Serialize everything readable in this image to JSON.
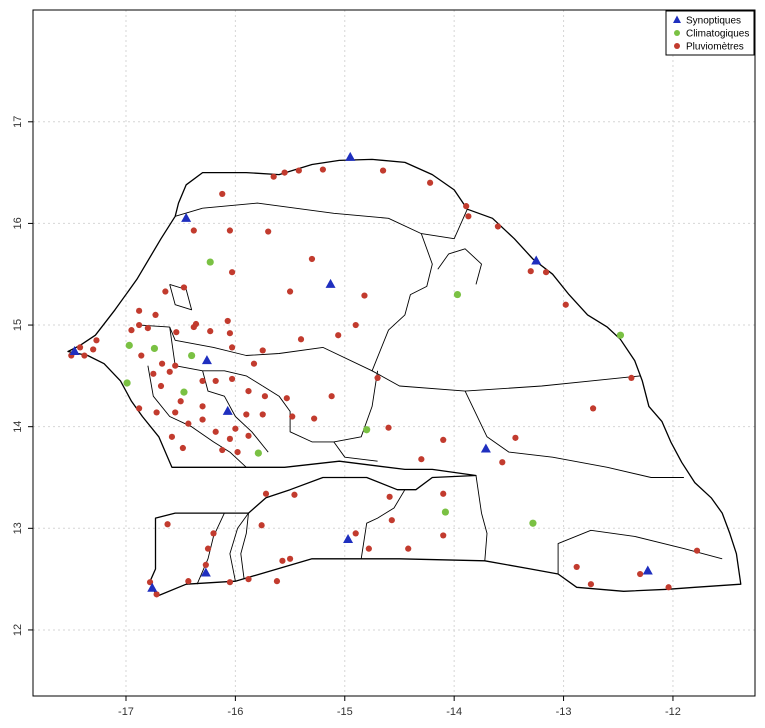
{
  "chart_data": {
    "type": "scatter",
    "title": "",
    "xlabel": "",
    "ylabel": "",
    "xlim": [
      -17.85,
      -11.25
    ],
    "ylim": [
      11.35,
      18.1
    ],
    "x_ticks": [
      -17,
      -16,
      -15,
      -14,
      -13,
      -12
    ],
    "y_ticks": [
      12,
      13,
      14,
      15,
      16,
      17
    ],
    "grid": true,
    "legend_position": "top-right",
    "series": [
      {
        "name": "Synoptiques",
        "marker": "triangle",
        "color": "#1f2fbf",
        "points": [
          [
            -14.95,
            16.65
          ],
          [
            -16.45,
            16.05
          ],
          [
            -13.25,
            15.63
          ],
          [
            -15.13,
            15.4
          ],
          [
            -17.47,
            14.74
          ],
          [
            -16.26,
            14.65
          ],
          [
            -16.07,
            14.15
          ],
          [
            -13.71,
            13.78
          ],
          [
            -14.97,
            12.89
          ],
          [
            -16.27,
            12.56
          ],
          [
            -12.23,
            12.58
          ],
          [
            -16.76,
            12.41
          ]
        ]
      },
      {
        "name": "Climatogiques",
        "marker": "circle",
        "color": "#7ac143",
        "points": [
          [
            -16.23,
            15.62
          ],
          [
            -13.97,
            15.3
          ],
          [
            -12.48,
            14.9
          ],
          [
            -16.97,
            14.8
          ],
          [
            -16.74,
            14.77
          ],
          [
            -16.4,
            14.7
          ],
          [
            -16.99,
            14.43
          ],
          [
            -16.47,
            14.34
          ],
          [
            -14.8,
            13.97
          ],
          [
            -15.79,
            13.74
          ],
          [
            -14.08,
            13.16
          ],
          [
            -13.28,
            13.05
          ]
        ]
      },
      {
        "name": "Pluviomètres",
        "marker": "circle",
        "color": "#c23b2e",
        "points": [
          [
            -15.42,
            16.52
          ],
          [
            -15.2,
            16.53
          ],
          [
            -14.65,
            16.52
          ],
          [
            -15.65,
            16.46
          ],
          [
            -15.55,
            16.5
          ],
          [
            -14.22,
            16.4
          ],
          [
            -16.12,
            16.29
          ],
          [
            -13.89,
            16.17
          ],
          [
            -13.87,
            16.07
          ],
          [
            -16.38,
            15.93
          ],
          [
            -16.05,
            15.93
          ],
          [
            -13.6,
            15.97
          ],
          [
            -15.7,
            15.92
          ],
          [
            -15.3,
            15.65
          ],
          [
            -13.3,
            15.53
          ],
          [
            -13.16,
            15.52
          ],
          [
            -16.03,
            15.52
          ],
          [
            -14.82,
            15.29
          ],
          [
            -15.5,
            15.33
          ],
          [
            -12.98,
            15.2
          ],
          [
            -16.47,
            15.37
          ],
          [
            -16.64,
            15.33
          ],
          [
            -16.88,
            15.14
          ],
          [
            -16.73,
            15.1
          ],
          [
            -16.88,
            15.0
          ],
          [
            -16.36,
            15.01
          ],
          [
            -16.07,
            15.04
          ],
          [
            -14.9,
            15.0
          ],
          [
            -15.06,
            14.9
          ],
          [
            -15.4,
            14.86
          ],
          [
            -16.95,
            14.95
          ],
          [
            -16.8,
            14.97
          ],
          [
            -16.54,
            14.93
          ],
          [
            -16.38,
            14.98
          ],
          [
            -16.23,
            14.94
          ],
          [
            -16.05,
            14.92
          ],
          [
            -17.27,
            14.85
          ],
          [
            -17.42,
            14.78
          ],
          [
            -17.3,
            14.76
          ],
          [
            -17.38,
            14.7
          ],
          [
            -17.5,
            14.7
          ],
          [
            -16.86,
            14.7
          ],
          [
            -16.67,
            14.62
          ],
          [
            -16.55,
            14.6
          ],
          [
            -16.03,
            14.78
          ],
          [
            -15.75,
            14.75
          ],
          [
            -15.83,
            14.62
          ],
          [
            -16.75,
            14.52
          ],
          [
            -16.6,
            14.54
          ],
          [
            -16.3,
            14.45
          ],
          [
            -16.18,
            14.45
          ],
          [
            -16.03,
            14.47
          ],
          [
            -16.68,
            14.4
          ],
          [
            -16.5,
            14.25
          ],
          [
            -16.3,
            14.2
          ],
          [
            -15.88,
            14.35
          ],
          [
            -15.73,
            14.3
          ],
          [
            -16.88,
            14.18
          ],
          [
            -16.72,
            14.14
          ],
          [
            -16.55,
            14.14
          ],
          [
            -16.43,
            14.03
          ],
          [
            -16.3,
            14.07
          ],
          [
            -16.0,
            13.98
          ],
          [
            -15.9,
            14.12
          ],
          [
            -15.75,
            14.12
          ],
          [
            -15.53,
            14.28
          ],
          [
            -15.48,
            14.1
          ],
          [
            -15.28,
            14.08
          ],
          [
            -15.12,
            14.3
          ],
          [
            -14.7,
            14.48
          ],
          [
            -16.58,
            13.9
          ],
          [
            -16.18,
            13.95
          ],
          [
            -16.05,
            13.88
          ],
          [
            -15.88,
            13.91
          ],
          [
            -14.6,
            13.99
          ],
          [
            -16.48,
            13.79
          ],
          [
            -16.12,
            13.77
          ],
          [
            -15.98,
            13.75
          ],
          [
            -14.1,
            13.87
          ],
          [
            -13.44,
            13.89
          ],
          [
            -14.3,
            13.68
          ],
          [
            -13.56,
            13.65
          ],
          [
            -12.73,
            14.18
          ],
          [
            -12.38,
            14.48
          ],
          [
            -14.59,
            13.31
          ],
          [
            -14.1,
            13.34
          ],
          [
            -15.72,
            13.34
          ],
          [
            -15.46,
            13.33
          ],
          [
            -14.57,
            13.08
          ],
          [
            -14.9,
            12.95
          ],
          [
            -14.1,
            12.93
          ],
          [
            -16.62,
            13.04
          ],
          [
            -16.2,
            12.95
          ],
          [
            -16.25,
            12.8
          ],
          [
            -15.76,
            13.03
          ],
          [
            -14.78,
            12.8
          ],
          [
            -14.42,
            12.8
          ],
          [
            -16.27,
            12.64
          ],
          [
            -15.5,
            12.7
          ],
          [
            -15.57,
            12.68
          ],
          [
            -16.43,
            12.48
          ],
          [
            -16.05,
            12.47
          ],
          [
            -15.88,
            12.5
          ],
          [
            -15.62,
            12.48
          ],
          [
            -16.78,
            12.47
          ],
          [
            -16.72,
            12.35
          ],
          [
            -12.88,
            12.62
          ],
          [
            -12.75,
            12.45
          ],
          [
            -12.3,
            12.55
          ],
          [
            -12.04,
            12.42
          ],
          [
            -11.78,
            12.78
          ]
        ]
      }
    ],
    "country_outline": [
      [
        -17.53,
        14.74
      ],
      [
        -17.42,
        14.8
      ],
      [
        -17.28,
        14.9
      ],
      [
        -17.1,
        15.15
      ],
      [
        -16.9,
        15.45
      ],
      [
        -16.68,
        15.85
      ],
      [
        -16.55,
        16.07
      ],
      [
        -16.52,
        16.2
      ],
      [
        -16.45,
        16.38
      ],
      [
        -16.3,
        16.5
      ],
      [
        -15.9,
        16.5
      ],
      [
        -15.6,
        16.48
      ],
      [
        -15.3,
        16.58
      ],
      [
        -15.05,
        16.62
      ],
      [
        -14.75,
        16.63
      ],
      [
        -14.45,
        16.6
      ],
      [
        -14.2,
        16.48
      ],
      [
        -14.0,
        16.33
      ],
      [
        -13.88,
        16.14
      ],
      [
        -13.65,
        16.05
      ],
      [
        -13.45,
        15.85
      ],
      [
        -13.28,
        15.65
      ],
      [
        -13.1,
        15.5
      ],
      [
        -12.95,
        15.3
      ],
      [
        -12.78,
        15.1
      ],
      [
        -12.6,
        14.98
      ],
      [
        -12.48,
        14.86
      ],
      [
        -12.35,
        14.65
      ],
      [
        -12.28,
        14.45
      ],
      [
        -12.22,
        14.2
      ],
      [
        -12.1,
        14.05
      ],
      [
        -12.02,
        13.85
      ],
      [
        -11.92,
        13.65
      ],
      [
        -11.8,
        13.45
      ],
      [
        -11.65,
        13.3
      ],
      [
        -11.55,
        13.15
      ],
      [
        -11.48,
        12.95
      ],
      [
        -11.42,
        12.75
      ],
      [
        -11.38,
        12.45
      ],
      [
        -11.8,
        12.42
      ],
      [
        -12.05,
        12.4
      ],
      [
        -12.45,
        12.38
      ],
      [
        -12.88,
        12.42
      ],
      [
        -13.05,
        12.55
      ],
      [
        -13.3,
        12.6
      ],
      [
        -13.72,
        12.68
      ],
      [
        -14.5,
        12.7
      ],
      [
        -15.3,
        12.7
      ],
      [
        -16.0,
        12.48
      ],
      [
        -16.45,
        12.45
      ],
      [
        -16.72,
        12.33
      ],
      [
        -16.78,
        12.48
      ],
      [
        -16.73,
        12.6
      ],
      [
        -16.73,
        13.1
      ],
      [
        -16.55,
        13.15
      ],
      [
        -15.88,
        13.15
      ],
      [
        -15.72,
        13.3
      ],
      [
        -15.5,
        13.38
      ],
      [
        -15.2,
        13.5
      ],
      [
        -14.8,
        13.5
      ],
      [
        -14.52,
        13.38
      ],
      [
        -14.35,
        13.38
      ],
      [
        -14.2,
        13.5
      ],
      [
        -13.8,
        13.52
      ],
      [
        -14.2,
        13.58
      ],
      [
        -14.45,
        13.58
      ],
      [
        -14.75,
        13.62
      ],
      [
        -15.05,
        13.66
      ],
      [
        -15.55,
        13.6
      ],
      [
        -16.58,
        13.6
      ],
      [
        -16.7,
        13.9
      ],
      [
        -16.85,
        14.1
      ],
      [
        -16.95,
        14.25
      ],
      [
        -17.05,
        14.45
      ],
      [
        -17.2,
        14.62
      ],
      [
        -17.35,
        14.7
      ],
      [
        -17.53,
        14.74
      ]
    ],
    "region_boundaries": [
      [
        [
          -16.3,
          16.15
        ],
        [
          -15.8,
          16.2
        ],
        [
          -15.1,
          16.1
        ],
        [
          -14.6,
          16.05
        ],
        [
          -14.3,
          15.9
        ],
        [
          -14.0,
          15.85
        ],
        [
          -13.88,
          16.14
        ]
      ],
      [
        [
          -16.55,
          16.07
        ],
        [
          -16.3,
          16.15
        ]
      ],
      [
        [
          -14.3,
          15.9
        ],
        [
          -14.2,
          15.6
        ],
        [
          -14.25,
          15.38
        ],
        [
          -14.4,
          15.3
        ],
        [
          -14.45,
          15.1
        ],
        [
          -14.6,
          14.95
        ],
        [
          -14.75,
          14.55
        ],
        [
          -14.5,
          14.4
        ],
        [
          -13.9,
          14.35
        ],
        [
          -13.2,
          14.4
        ],
        [
          -12.3,
          14.5
        ]
      ],
      [
        [
          -14.15,
          15.55
        ],
        [
          -14.05,
          15.7
        ],
        [
          -13.9,
          15.75
        ],
        [
          -13.75,
          15.6
        ],
        [
          -13.8,
          15.4
        ]
      ],
      [
        [
          -16.88,
          15.0
        ],
        [
          -16.6,
          14.98
        ],
        [
          -16.55,
          14.85
        ],
        [
          -16.2,
          14.78
        ],
        [
          -15.9,
          14.7
        ],
        [
          -15.6,
          14.72
        ],
        [
          -15.2,
          14.78
        ],
        [
          -14.75,
          14.55
        ]
      ],
      [
        [
          -16.6,
          15.4
        ],
        [
          -16.55,
          15.2
        ],
        [
          -16.4,
          15.15
        ],
        [
          -16.45,
          15.35
        ],
        [
          -16.6,
          15.4
        ]
      ],
      [
        [
          -16.6,
          14.98
        ],
        [
          -16.55,
          14.6
        ],
        [
          -16.3,
          14.55
        ],
        [
          -16.1,
          14.55
        ],
        [
          -15.9,
          14.5
        ],
        [
          -15.75,
          14.4
        ]
      ],
      [
        [
          -16.8,
          14.6
        ],
        [
          -16.75,
          14.3
        ],
        [
          -16.6,
          14.1
        ],
        [
          -16.4,
          14.0
        ],
        [
          -16.2,
          13.85
        ],
        [
          -16.05,
          13.75
        ],
        [
          -15.9,
          13.6
        ]
      ],
      [
        [
          -15.75,
          14.4
        ],
        [
          -15.6,
          14.3
        ],
        [
          -15.5,
          14.15
        ],
        [
          -15.5,
          13.95
        ],
        [
          -15.3,
          13.85
        ],
        [
          -15.1,
          13.85
        ],
        [
          -14.85,
          13.9
        ],
        [
          -14.75,
          14.2
        ],
        [
          -14.7,
          14.55
        ]
      ],
      [
        [
          -16.3,
          14.55
        ],
        [
          -16.25,
          14.35
        ],
        [
          -16.1,
          14.3
        ],
        [
          -16.0,
          14.1
        ],
        [
          -15.85,
          13.95
        ],
        [
          -15.7,
          13.75
        ]
      ],
      [
        [
          -15.1,
          13.85
        ],
        [
          -15.0,
          13.7
        ],
        [
          -14.7,
          13.66
        ]
      ],
      [
        [
          -13.9,
          14.35
        ],
        [
          -13.7,
          13.9
        ],
        [
          -13.5,
          13.75
        ],
        [
          -13.1,
          13.7
        ],
        [
          -12.6,
          13.6
        ],
        [
          -12.2,
          13.5
        ],
        [
          -11.9,
          13.5
        ]
      ],
      [
        [
          -14.45,
          13.38
        ],
        [
          -14.55,
          13.2
        ],
        [
          -14.7,
          13.1
        ],
        [
          -14.8,
          13.05
        ],
        [
          -14.85,
          12.7
        ]
      ],
      [
        [
          -13.72,
          12.68
        ],
        [
          -13.7,
          12.95
        ],
        [
          -13.75,
          13.15
        ],
        [
          -13.8,
          13.52
        ]
      ],
      [
        [
          -15.88,
          13.15
        ],
        [
          -15.9,
          12.95
        ],
        [
          -15.95,
          12.75
        ],
        [
          -15.92,
          12.5
        ]
      ],
      [
        [
          -16.1,
          13.15
        ],
        [
          -16.2,
          12.92
        ],
        [
          -16.25,
          12.7
        ],
        [
          -16.35,
          12.45
        ]
      ],
      [
        [
          -13.05,
          12.55
        ],
        [
          -13.05,
          12.85
        ],
        [
          -12.75,
          12.98
        ],
        [
          -12.35,
          12.92
        ],
        [
          -11.9,
          12.8
        ],
        [
          -11.55,
          12.7
        ]
      ],
      [
        [
          -16.0,
          12.48
        ],
        [
          -16.05,
          12.75
        ],
        [
          -15.98,
          13.0
        ],
        [
          -15.88,
          13.15
        ]
      ]
    ]
  }
}
